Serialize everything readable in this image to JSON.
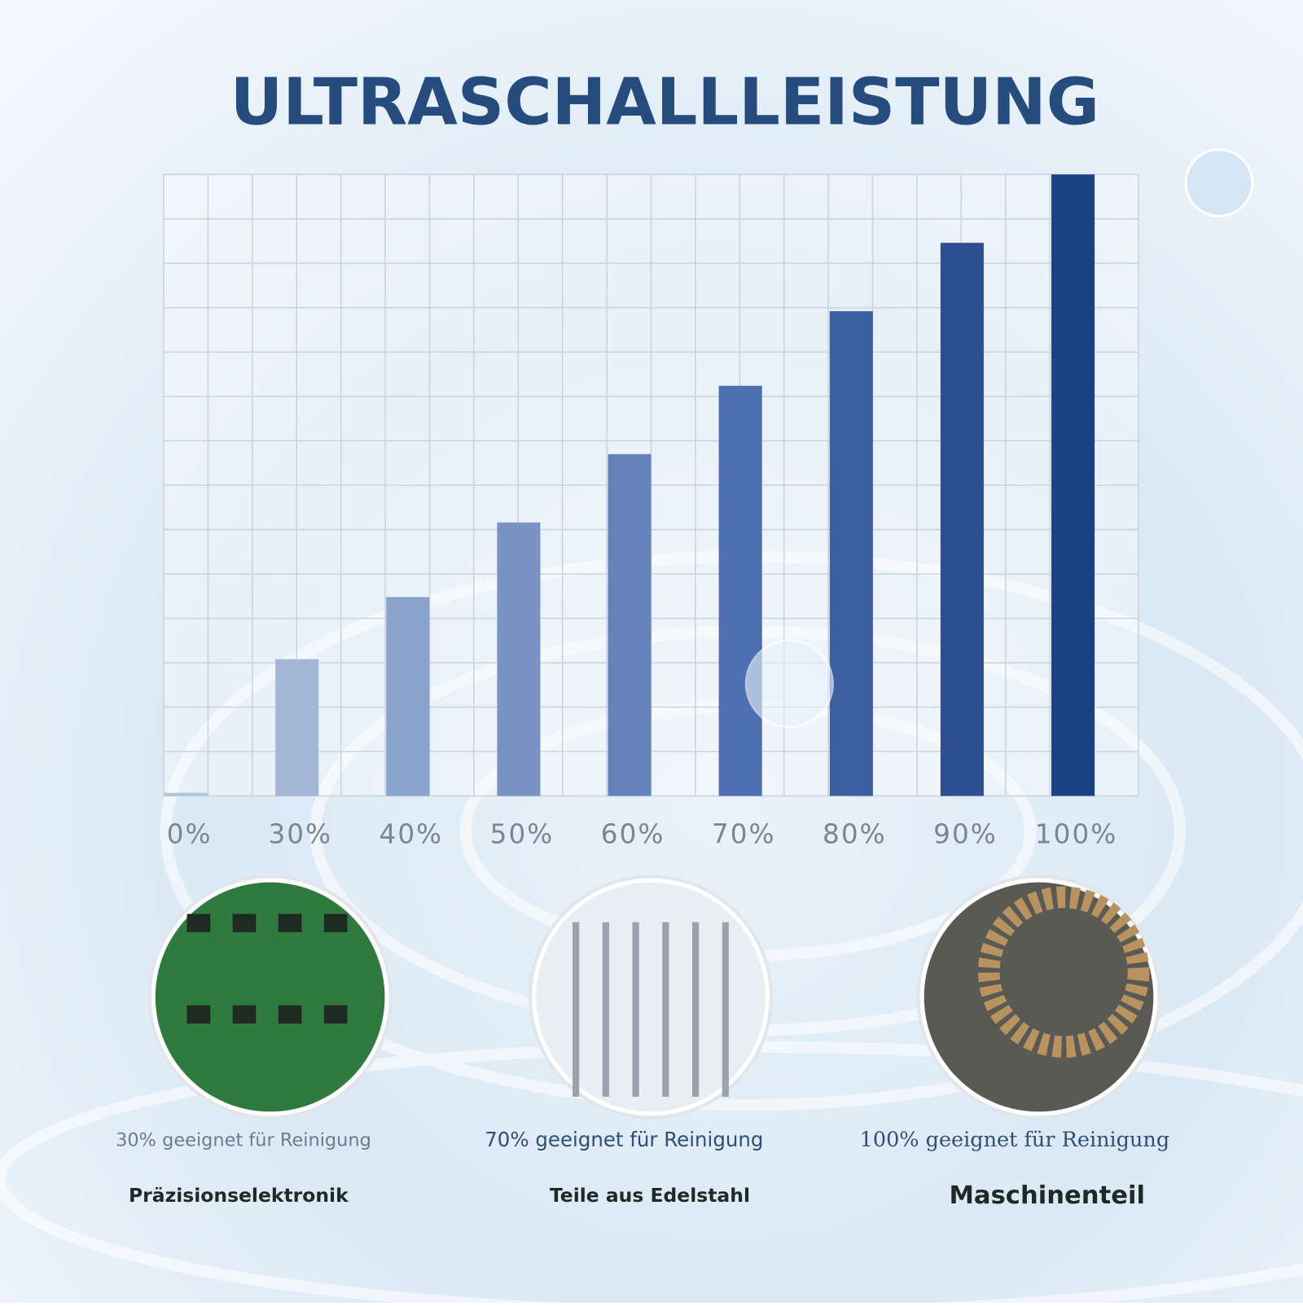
{
  "chart_data": {
    "type": "bar",
    "title": "ULTRASCHALLLEISTUNG",
    "categories": [
      "0%",
      "30%",
      "40%",
      "50%",
      "60%",
      "70%",
      "80%",
      "90%",
      "100%"
    ],
    "values": [
      0.5,
      22,
      32,
      44,
      55,
      66,
      78,
      89,
      100
    ],
    "colors": [
      "#b4c3dc",
      "#a3b6d6",
      "#8aa3cc",
      "#7792c3",
      "#6583bb",
      "#4f70b0",
      "#3c5f9f",
      "#2c4f92",
      "#1a4286"
    ],
    "ylim": [
      0,
      100
    ],
    "grid": true
  },
  "cards": [
    {
      "caption": "30% geeignet für Reinigung",
      "label": "Präzisionselektronik"
    },
    {
      "caption": "70% geeignet für Reinigung",
      "label": "Teile aus Edelstahl"
    },
    {
      "caption": "100% geeignet für Reinigung",
      "label": "Maschinenteil"
    }
  ]
}
